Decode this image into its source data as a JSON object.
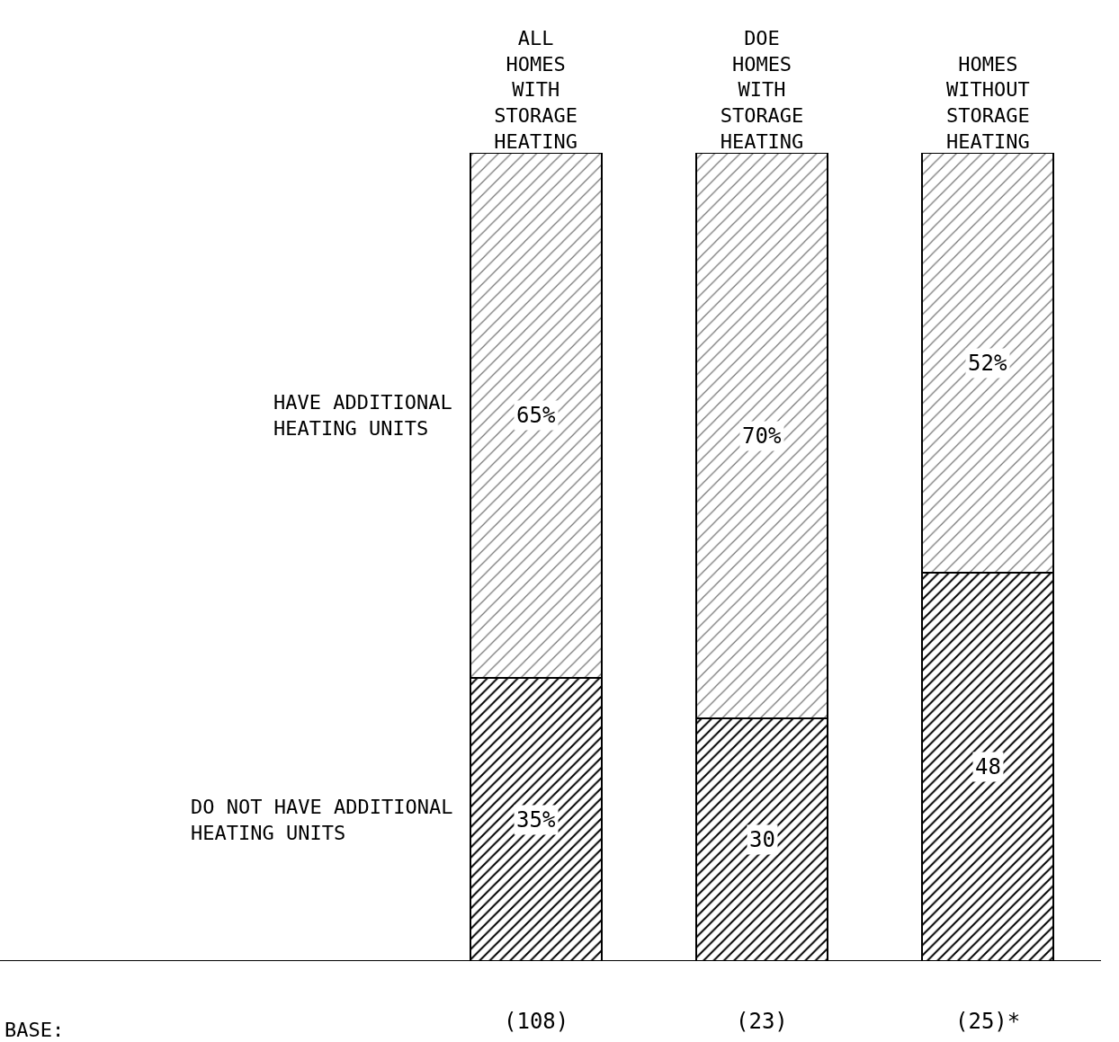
{
  "chart_data": {
    "type": "bar",
    "stacked": true,
    "categories": [
      "ALL HOMES WITH STORAGE HEATING",
      "DOE HOMES WITH STORAGE HEATING",
      "HOMES WITHOUT STORAGE HEATING"
    ],
    "series": [
      {
        "name": "DO NOT HAVE ADDITIONAL HEATING UNITS",
        "color": "#000000",
        "values": [
          35,
          30,
          48
        ],
        "value_labels": [
          "35%",
          "30",
          "48"
        ]
      },
      {
        "name": "HAVE ADDITIONAL HEATING UNITS",
        "color": "#000000",
        "values": [
          65,
          70,
          52
        ],
        "value_labels": [
          "65%",
          "70%",
          "52%"
        ]
      }
    ],
    "annotations": [
      "BASE:",
      "(108)",
      "(23)",
      "(25)*"
    ]
  }
}
